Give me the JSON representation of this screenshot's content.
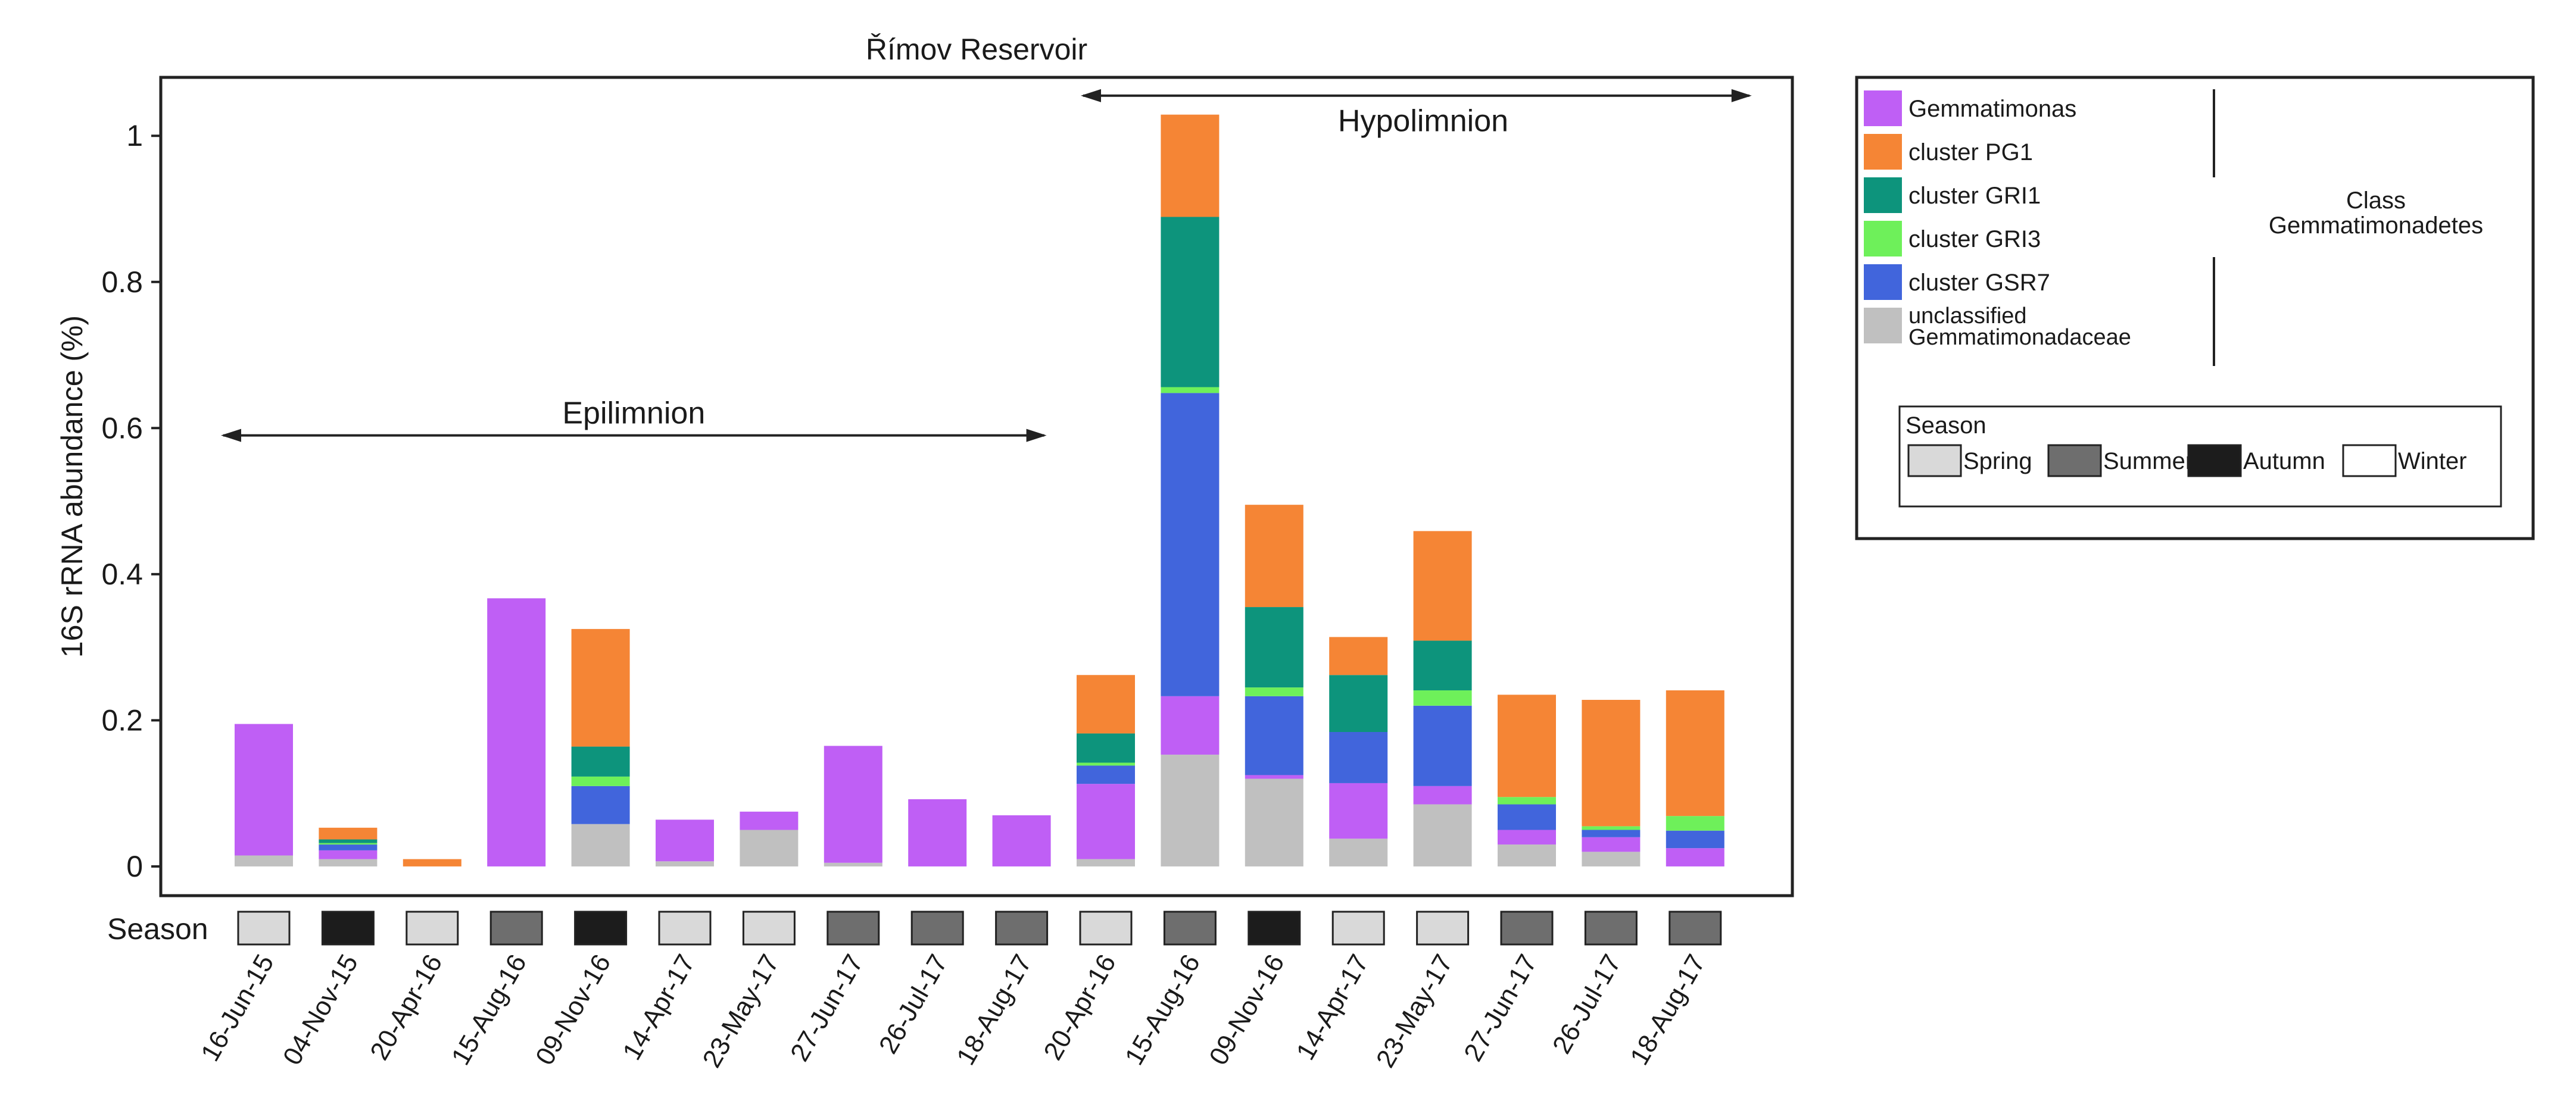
{
  "chart_data": {
    "type": "bar",
    "stacked": true,
    "title": "Římov Reservoir",
    "xlabel": "",
    "ylabel": "16S rRNA abundance (%)",
    "ylim": [
      -0.04,
      1.08
    ],
    "yticks": [
      0,
      0.2,
      0.4,
      0.6,
      0.8,
      1
    ],
    "ytick_labels": [
      "0",
      "0.2",
      "0.4",
      "0.6",
      "0.8",
      "1"
    ],
    "categories": [
      "16-Jun-15",
      "04-Nov-15",
      "20-Apr-16",
      "15-Aug-16",
      "09-Nov-16",
      "14-Apr-17",
      "23-May-17",
      "27-Jun-17",
      "26-Jul-17",
      "18-Aug-17",
      "20-Apr-16",
      "15-Aug-16",
      "09-Nov-16",
      "14-Apr-17",
      "23-May-17",
      "27-Jun-17",
      "26-Jul-17",
      "18-Aug-17"
    ],
    "series": [
      {
        "name": "unclassified Gemmatimonadaceae",
        "color": "#c0c0c0",
        "values": [
          0.015,
          0.01,
          0.0,
          0.0,
          0.058,
          0.007,
          0.05,
          0.005,
          0.0,
          0.0,
          0.01,
          0.153,
          0.12,
          0.038,
          0.085,
          0.03,
          0.02,
          0.0
        ]
      },
      {
        "name": "Gemmatimonas",
        "color": "#bf5ff5",
        "values": [
          0.18,
          0.012,
          0.0,
          0.367,
          0.0,
          0.057,
          0.025,
          0.16,
          0.092,
          0.07,
          0.103,
          0.08,
          0.005,
          0.076,
          0.025,
          0.02,
          0.02,
          0.025
        ]
      },
      {
        "name": "cluster GSR7",
        "color": "#4165dc",
        "values": [
          0.0,
          0.008,
          0.0,
          0.0,
          0.052,
          0.0,
          0.0,
          0.0,
          0.0,
          0.0,
          0.025,
          0.415,
          0.108,
          0.07,
          0.11,
          0.035,
          0.01,
          0.024
        ]
      },
      {
        "name": "cluster GRI3",
        "color": "#6ef05a",
        "values": [
          0.0,
          0.002,
          0.0,
          0.0,
          0.013,
          0.0,
          0.0,
          0.0,
          0.0,
          0.0,
          0.004,
          0.008,
          0.012,
          0.0,
          0.021,
          0.01,
          0.005,
          0.02
        ]
      },
      {
        "name": "cluster GRI1",
        "color": "#0d947c",
        "values": [
          0.0,
          0.005,
          0.0,
          0.0,
          0.041,
          0.0,
          0.0,
          0.0,
          0.0,
          0.0,
          0.04,
          0.233,
          0.11,
          0.078,
          0.068,
          0.0,
          0.0,
          0.0
        ]
      },
      {
        "name": "cluster PG1",
        "color": "#f58535",
        "values": [
          0.0,
          0.016,
          0.01,
          0.0,
          0.161,
          0.0,
          0.0,
          0.0,
          0.0,
          0.0,
          0.08,
          0.14,
          0.14,
          0.052,
          0.15,
          0.14,
          0.173,
          0.172
        ]
      }
    ],
    "legend_order": [
      "Gemmatimonas",
      "cluster PG1",
      "cluster GRI1",
      "cluster GRI3",
      "cluster GSR7",
      "unclassified Gemmatimonadaceae"
    ],
    "legend_labels": [
      {
        "series": "Gemmatimonas",
        "lines": [
          "Gemmatimonas"
        ]
      },
      {
        "series": "cluster PG1",
        "lines": [
          "cluster PG1"
        ]
      },
      {
        "series": "cluster GRI1",
        "lines": [
          "cluster GRI1"
        ]
      },
      {
        "series": "cluster GRI3",
        "lines": [
          "cluster GRI3"
        ]
      },
      {
        "series": "cluster GSR7",
        "lines": [
          "cluster GSR7"
        ]
      },
      {
        "series": "unclassified Gemmatimonadaceae",
        "lines": [
          "unclassified",
          "Gemmatimonadaceae"
        ]
      }
    ],
    "legend_group_label": [
      "Class",
      "Gemmatimonadetes"
    ],
    "legend_placement": "right",
    "season_label": "Season",
    "seasons": [
      "Spring",
      "Autumn",
      "Spring",
      "Summer",
      "Autumn",
      "Spring",
      "Spring",
      "Summer",
      "Summer",
      "Summer",
      "Spring",
      "Summer",
      "Autumn",
      "Spring",
      "Spring",
      "Summer",
      "Summer",
      "Summer"
    ],
    "season_legend": {
      "title": "Season",
      "items": [
        {
          "name": "Spring",
          "color": "#d9d9d9"
        },
        {
          "name": "Summer",
          "color": "#6e6e6e"
        },
        {
          "name": "Autumn",
          "color": "#1c1c1c"
        },
        {
          "name": "Winter",
          "color": "#ffffff"
        }
      ]
    },
    "annotations": [
      {
        "text": "Epilimnion",
        "from_index": 0,
        "to_index": 9,
        "y": 0.59
      },
      {
        "text": "Hypolimnion",
        "from_index": 10,
        "to_index": 17,
        "y": 1.055
      }
    ]
  }
}
